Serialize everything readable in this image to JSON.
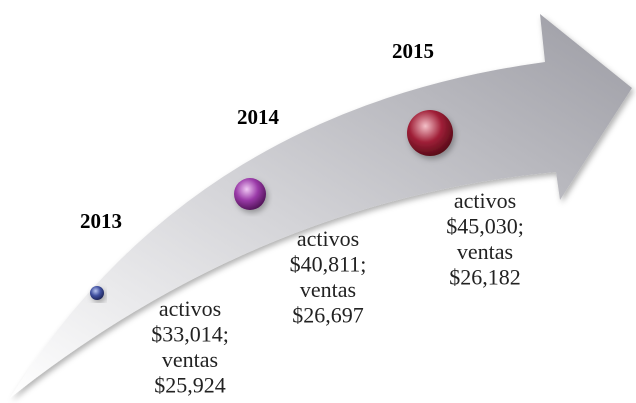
{
  "milestones": [
    {
      "year": "2013",
      "lines": [
        "activos",
        "$33,014;",
        "ventas",
        "$25,924"
      ]
    },
    {
      "year": "2014",
      "lines": [
        "activos",
        "$40,811;",
        "ventas",
        "$26,697"
      ]
    },
    {
      "year": "2015",
      "lines": [
        "activos",
        "$45,030;",
        "ventas",
        "$26,182"
      ]
    }
  ]
}
